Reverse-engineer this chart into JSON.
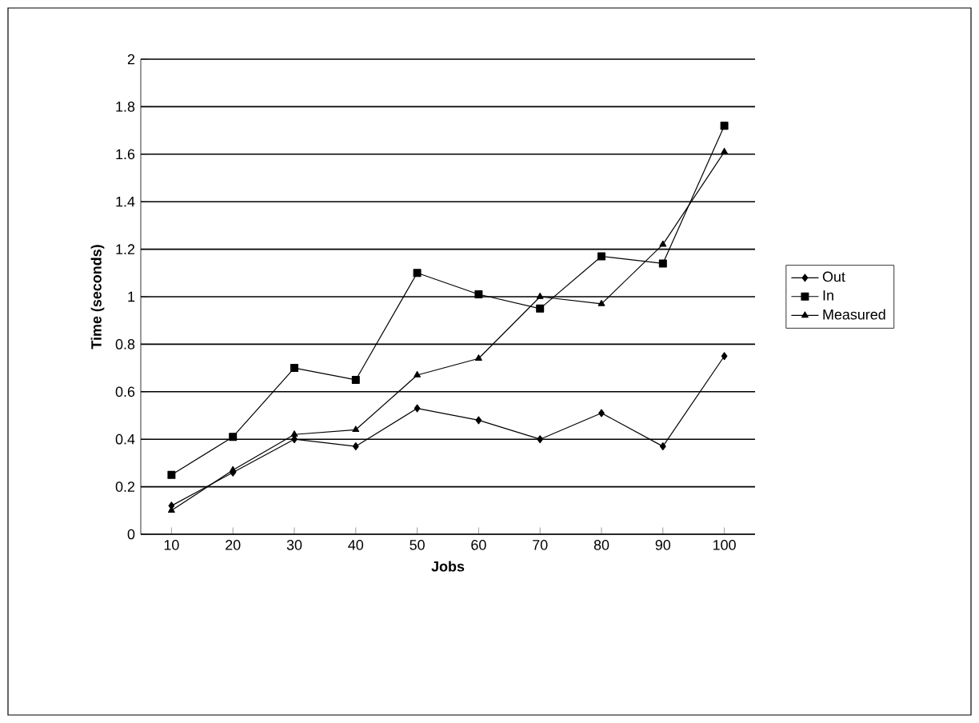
{
  "chart_data": {
    "type": "line",
    "xlabel": "Jobs",
    "ylabel": "Time (seconds)",
    "categories": [
      "10",
      "20",
      "30",
      "40",
      "50",
      "60",
      "70",
      "80",
      "90",
      "100"
    ],
    "series": [
      {
        "name": "Out",
        "color": "#000000",
        "marker": "diamond",
        "values": [
          0.12,
          0.26,
          0.4,
          0.37,
          0.53,
          0.48,
          0.4,
          0.51,
          0.37,
          0.75
        ]
      },
      {
        "name": "In",
        "color": "#000000",
        "marker": "square",
        "values": [
          0.25,
          0.41,
          0.7,
          0.65,
          1.1,
          1.01,
          0.95,
          1.17,
          1.14,
          1.72
        ]
      },
      {
        "name": "Measured",
        "color": "#000000",
        "marker": "triangle",
        "values": [
          0.1,
          0.27,
          0.42,
          0.44,
          0.67,
          0.74,
          1.0,
          0.97,
          1.22,
          1.61
        ]
      }
    ],
    "ylim": [
      0,
      2
    ],
    "yticks": [
      0,
      0.2,
      0.4,
      0.6,
      0.8,
      1,
      1.2,
      1.4,
      1.6,
      1.8,
      2
    ],
    "grid": "y",
    "legend": "right",
    "line_style": "solid"
  }
}
